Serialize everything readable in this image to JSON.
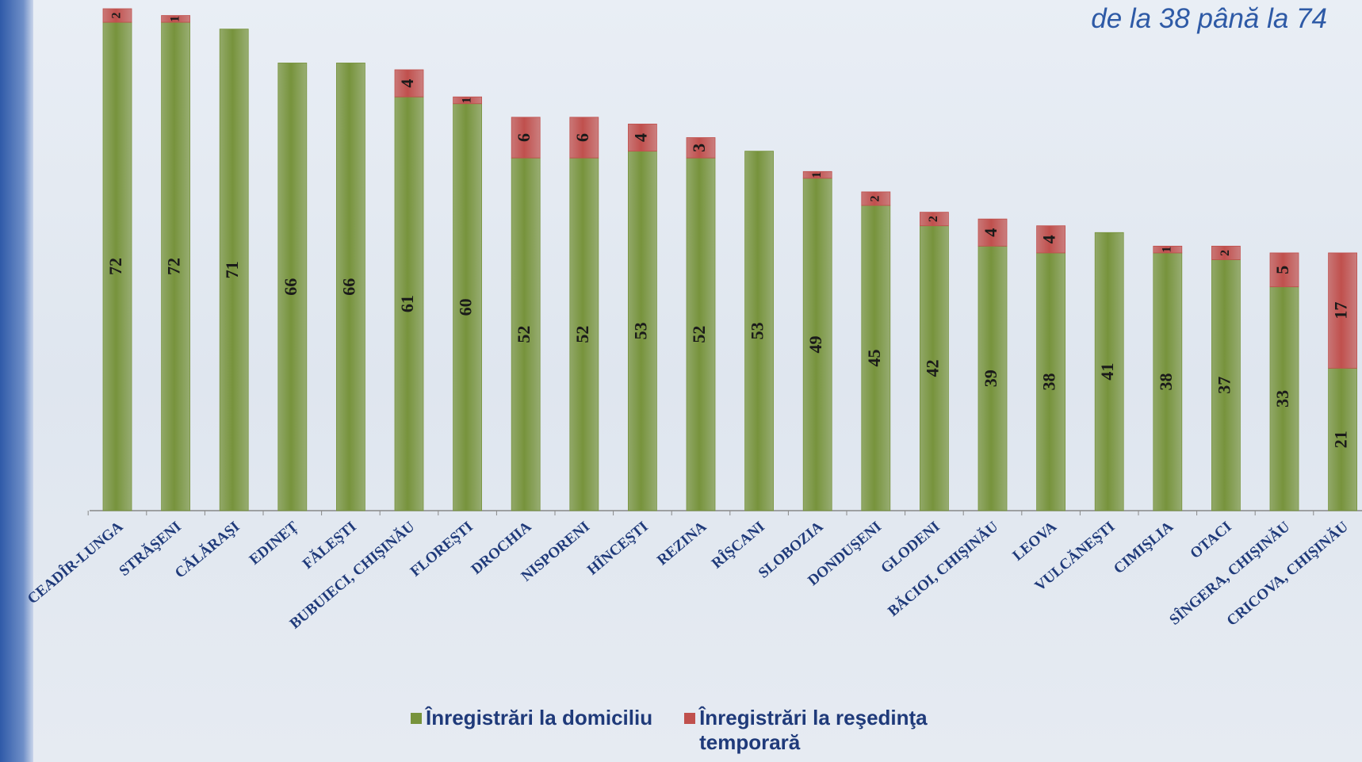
{
  "chart_data": {
    "type": "stacked-bar",
    "subtitle": "de la 38 până la 74",
    "categories": [
      "CEADÎR-LUNGA",
      "STRĂŞENI",
      "CĂLĂRAŞI",
      "EDINEȚ",
      "FĂLEŞTI",
      "BUBUIECI, CHIŞINĂU",
      "FLOREŞTI",
      "DROCHIA",
      "NISPORENI",
      "HÎNCEŞTI",
      "REZINA",
      "RÎŞCANI",
      "SLOBOZIA",
      "DONDUŞENI",
      "GLODENI",
      "BĂCIOI, CHIŞINĂU",
      "LEOVA",
      "VULCĂNEŞTI",
      "CIMIŞLIA",
      "OTACI",
      "SÎNGERA, CHIŞINĂU",
      "CRICOVA, CHIŞINĂU"
    ],
    "series": [
      {
        "name": "Înregistrări la domiciliu",
        "color": "#77933c",
        "values": [
          72,
          72,
          71,
          66,
          66,
          61,
          60,
          52,
          52,
          53,
          52,
          53,
          49,
          45,
          42,
          39,
          38,
          41,
          38,
          37,
          33,
          21
        ]
      },
      {
        "name": "Înregistrări la reşedinţa temporară",
        "color": "#c0504d",
        "values": [
          2,
          1,
          null,
          null,
          null,
          4,
          1,
          6,
          6,
          4,
          3,
          null,
          1,
          2,
          2,
          4,
          4,
          null,
          1,
          2,
          5,
          17
        ]
      }
    ]
  }
}
